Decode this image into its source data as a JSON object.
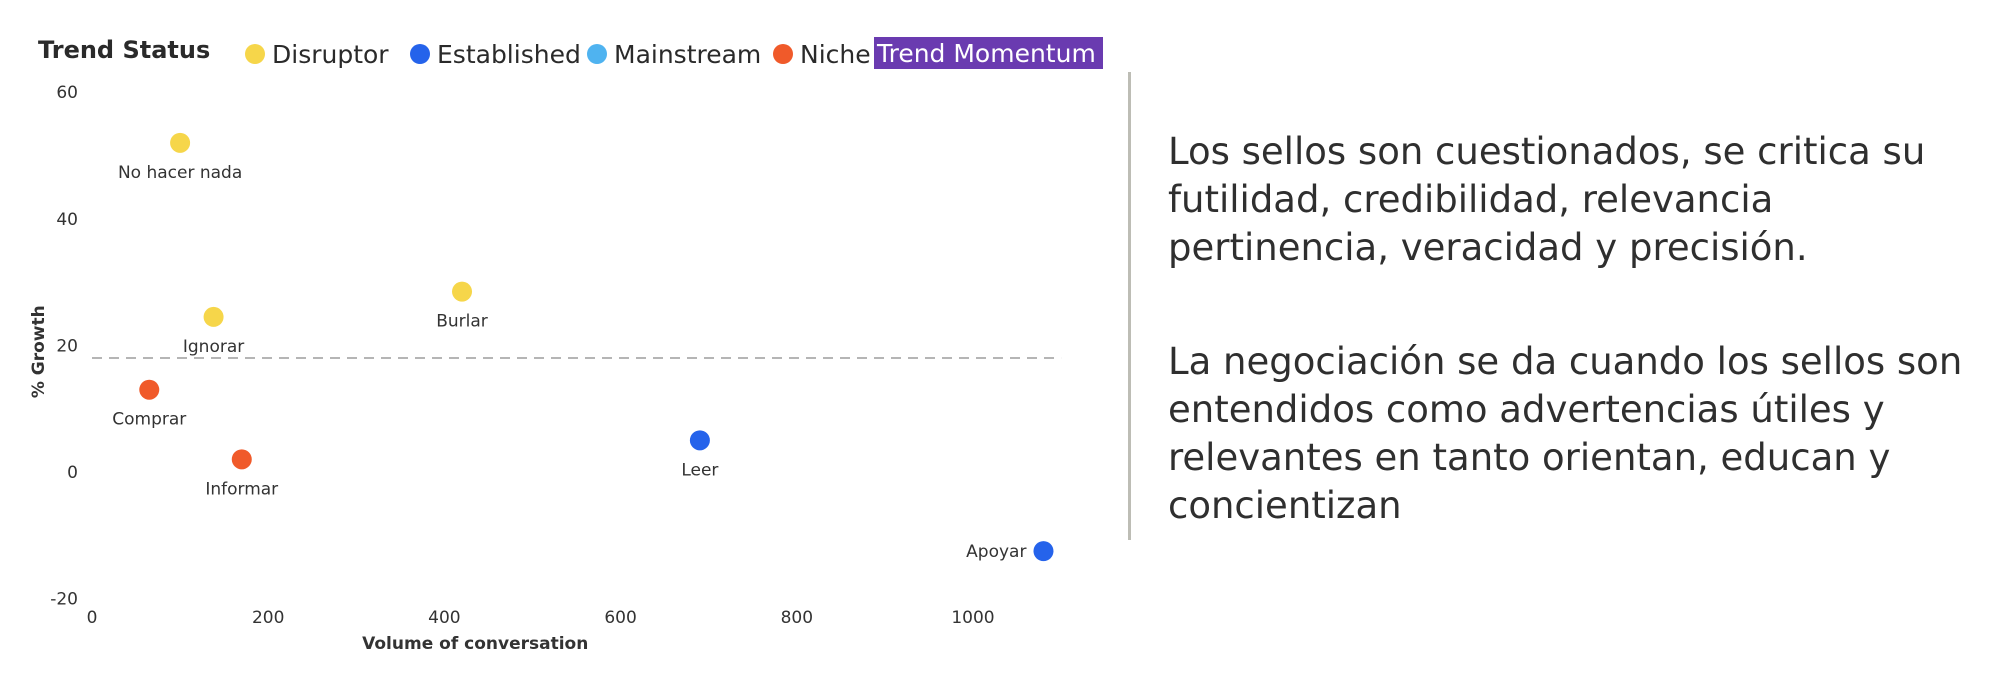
{
  "chart_data": {
    "type": "scatter",
    "legend": {
      "title": "Trend Status",
      "items": [
        {
          "label": "Disruptor",
          "color": "#f6d64a"
        },
        {
          "label": "Established",
          "color": "#2563eb"
        },
        {
          "label": "Mainstream",
          "color": "#4fb3f0"
        },
        {
          "label": "Niche",
          "color": "#f05a2a"
        }
      ],
      "highlight": {
        "label": "Trend Momentum",
        "color": "#6a3bb0"
      },
      "placement": "top-left"
    },
    "xlabel": "Volume of conversation",
    "ylabel": "% Growth",
    "xlim": [
      0,
      1150
    ],
    "ylim": [
      -20,
      60
    ],
    "xticks": [
      0,
      200,
      400,
      600,
      800,
      1000
    ],
    "yticks": [
      -20,
      0,
      20,
      40,
      60
    ],
    "reference_line": {
      "y": 18,
      "style": "dashed"
    },
    "grid": false,
    "points": [
      {
        "label": "No hacer nada",
        "x": 100,
        "y": 52,
        "status": "Disruptor"
      },
      {
        "label": "Ignorar",
        "x": 138,
        "y": 24.5,
        "status": "Disruptor"
      },
      {
        "label": "Burlar",
        "x": 420,
        "y": 28.5,
        "status": "Disruptor"
      },
      {
        "label": "Comprar",
        "x": 65,
        "y": 13,
        "status": "Niche"
      },
      {
        "label": "Informar",
        "x": 170,
        "y": 2,
        "status": "Niche"
      },
      {
        "label": "Leer",
        "x": 690,
        "y": 5,
        "status": "Established"
      },
      {
        "label": "Apoyar",
        "x": 1080,
        "y": -12.5,
        "status": "Established"
      }
    ]
  },
  "text_panel": {
    "paragraphs": [
      "Los sellos son cuestionados, se critica su futilidad, credibilidad, relevancia pertinencia, veracidad y precisión.",
      "La negociación se da cuando los sellos son entendidos como advertencias útiles y relevantes en tanto orientan, educan y concientizan"
    ]
  }
}
